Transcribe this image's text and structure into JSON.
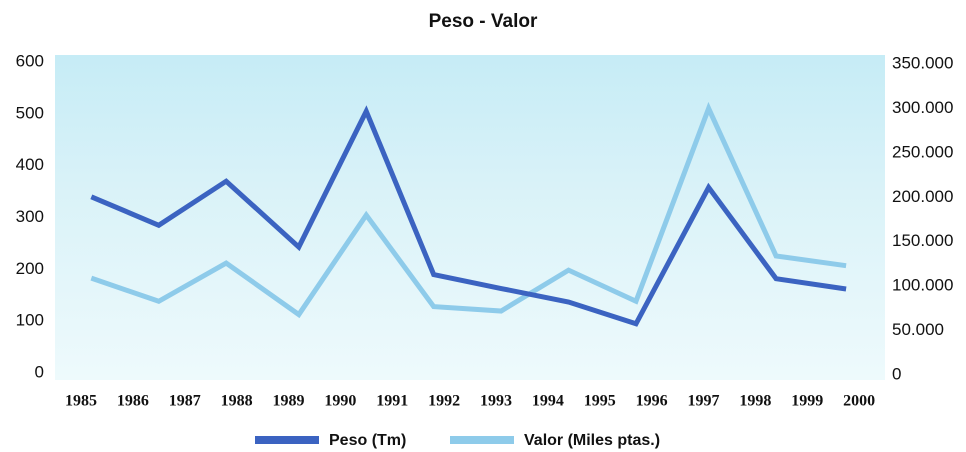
{
  "chart_data": {
    "type": "line",
    "title": "Peso - Valor",
    "x": [
      1985.2,
      1986.5,
      1987.8,
      1989.2,
      1990.5,
      1991.8,
      1993.1,
      1994.4,
      1995.7,
      1997.1,
      1998.4,
      1999.75
    ],
    "series": [
      {
        "name": "Peso (Tm)",
        "color": "#3b63c1",
        "values": [
          340,
          285,
          370,
          243,
          505,
          190,
          163,
          137,
          95,
          358,
          182,
          162
        ]
      },
      {
        "name": "Valor (Miles ptas.)",
        "color": "#8ecbea",
        "axis": "y2",
        "values": [
          109000,
          83000,
          126000,
          68000,
          180000,
          77000,
          72000,
          118000,
          83000,
          300000,
          134000,
          123000
        ]
      }
    ],
    "xlim": [
      1984.5,
      2000.5
    ],
    "xticks": [
      1985,
      1986,
      1987,
      1988,
      1989,
      1990,
      1991,
      1992,
      1993,
      1994,
      1995,
      1996,
      1997,
      1998,
      1999,
      2000
    ],
    "ylim": [
      0,
      600
    ],
    "yticks": [
      0,
      100,
      200,
      300,
      400,
      500,
      600
    ],
    "y2lim": [
      0,
      350000
    ],
    "y2ticks": [
      0,
      {
        "value": 50000,
        "label": "50.000"
      },
      {
        "value": 100000,
        "label": "100.000"
      },
      {
        "value": 150000,
        "label": "150.000"
      },
      {
        "value": 200000,
        "label": "200.000"
      },
      {
        "value": 250000,
        "label": "250.000"
      },
      {
        "value": 300000,
        "label": "300.000"
      },
      {
        "value": 350000,
        "label": "350.000"
      }
    ],
    "legend": "bottom"
  }
}
